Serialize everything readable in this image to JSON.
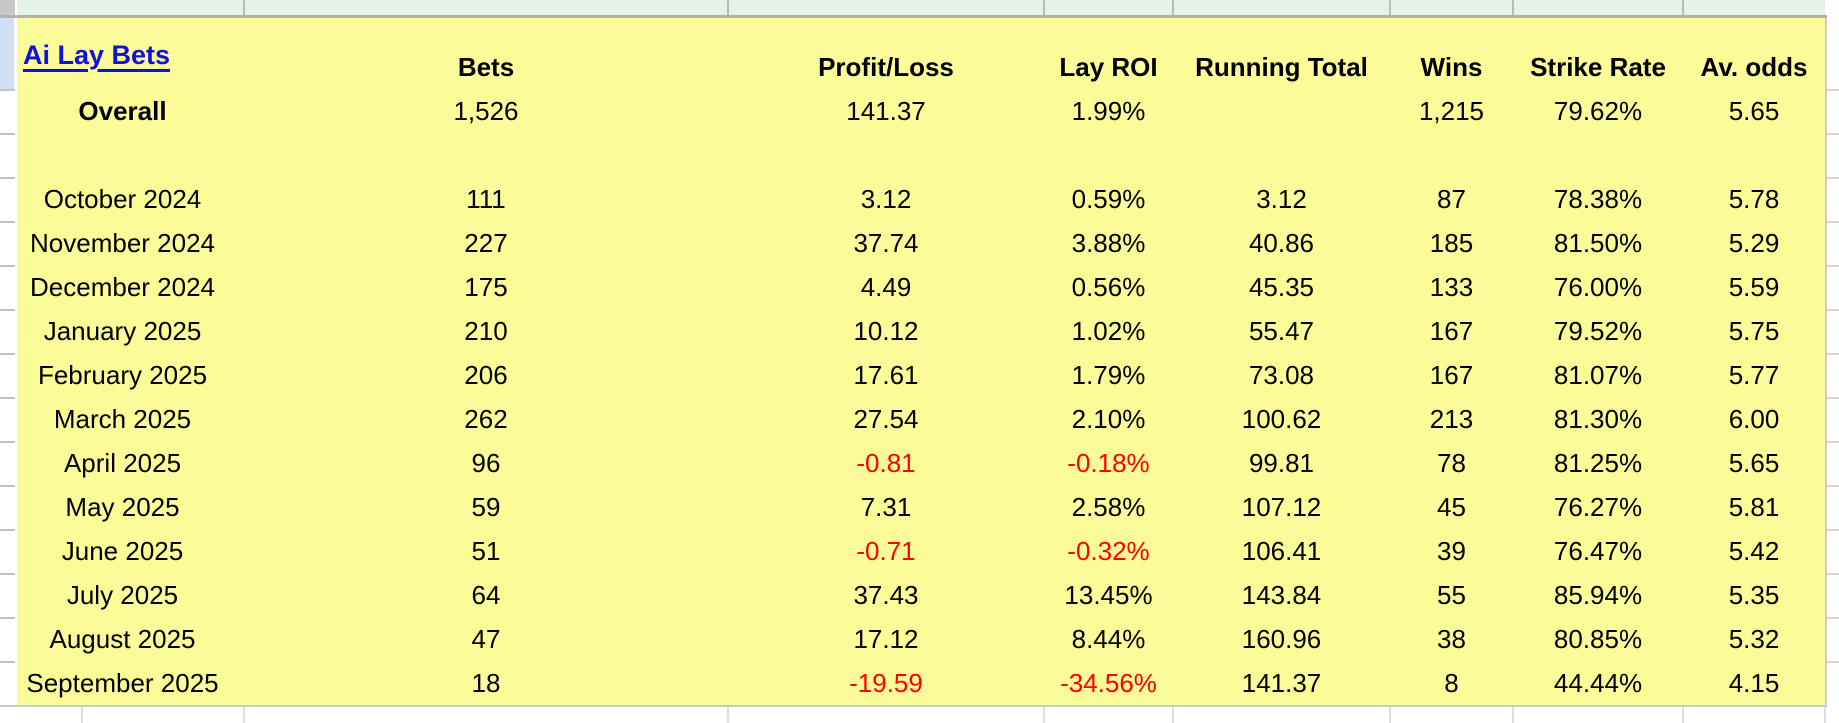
{
  "table": {
    "title_link": "Ai Lay Bets",
    "columns": [
      "Bets",
      "Profit/Loss",
      "Lay ROI",
      "Running Total",
      "Wins",
      "Strike Rate",
      "Av. odds"
    ],
    "rows": [
      {
        "label": "Overall",
        "bets": "1,526",
        "profit_loss": "141.37",
        "lay_roi": "1.99%",
        "running_total": "",
        "wins": "1,215",
        "strike_rate": "79.62%",
        "av_odds": "5.65",
        "emphasis": "bold"
      },
      {
        "label": "",
        "bets": "",
        "profit_loss": "",
        "lay_roi": "",
        "running_total": "",
        "wins": "",
        "strike_rate": "",
        "av_odds": "",
        "emphasis": ""
      },
      {
        "label": "October 2024",
        "bets": "111",
        "profit_loss": "3.12",
        "lay_roi": "0.59%",
        "running_total": "3.12",
        "wins": "87",
        "strike_rate": "78.38%",
        "av_odds": "5.78",
        "emphasis": ""
      },
      {
        "label": "November 2024",
        "bets": "227",
        "profit_loss": "37.74",
        "lay_roi": "3.88%",
        "running_total": "40.86",
        "wins": "185",
        "strike_rate": "81.50%",
        "av_odds": "5.29",
        "emphasis": ""
      },
      {
        "label": "December 2024",
        "bets": "175",
        "profit_loss": "4.49",
        "lay_roi": "0.56%",
        "running_total": "45.35",
        "wins": "133",
        "strike_rate": "76.00%",
        "av_odds": "5.59",
        "emphasis": ""
      },
      {
        "label": "January 2025",
        "bets": "210",
        "profit_loss": "10.12",
        "lay_roi": "1.02%",
        "running_total": "55.47",
        "wins": "167",
        "strike_rate": "79.52%",
        "av_odds": "5.75",
        "emphasis": ""
      },
      {
        "label": "February 2025",
        "bets": "206",
        "profit_loss": "17.61",
        "lay_roi": "1.79%",
        "running_total": "73.08",
        "wins": "167",
        "strike_rate": "81.07%",
        "av_odds": "5.77",
        "emphasis": ""
      },
      {
        "label": "March 2025",
        "bets": "262",
        "profit_loss": "27.54",
        "lay_roi": "2.10%",
        "running_total": "100.62",
        "wins": "213",
        "strike_rate": "81.30%",
        "av_odds": "6.00",
        "emphasis": ""
      },
      {
        "label": "April 2025",
        "bets": "96",
        "profit_loss": "-0.81",
        "lay_roi": "-0.18%",
        "running_total": "99.81",
        "wins": "78",
        "strike_rate": "81.25%",
        "av_odds": "5.65",
        "emphasis": ""
      },
      {
        "label": "May 2025",
        "bets": "59",
        "profit_loss": "7.31",
        "lay_roi": "2.58%",
        "running_total": "107.12",
        "wins": "45",
        "strike_rate": "76.27%",
        "av_odds": "5.81",
        "emphasis": ""
      },
      {
        "label": "June 2025",
        "bets": "51",
        "profit_loss": "-0.71",
        "lay_roi": "-0.32%",
        "running_total": "106.41",
        "wins": "39",
        "strike_rate": "76.47%",
        "av_odds": "5.42",
        "emphasis": ""
      },
      {
        "label": "July 2025",
        "bets": "64",
        "profit_loss": "37.43",
        "lay_roi": "13.45%",
        "running_total": "143.84",
        "wins": "55",
        "strike_rate": "85.94%",
        "av_odds": "5.35",
        "emphasis": ""
      },
      {
        "label": "August 2025",
        "bets": "47",
        "profit_loss": "17.12",
        "lay_roi": "8.44%",
        "running_total": "160.96",
        "wins": "38",
        "strike_rate": "80.85%",
        "av_odds": "5.32",
        "emphasis": ""
      },
      {
        "label": "September 2025",
        "bets": "18",
        "profit_loss": "-19.59",
        "lay_roi": "-34.56%",
        "running_total": "141.37",
        "wins": "8",
        "strike_rate": "44.44%",
        "av_odds": "4.15",
        "emphasis": ""
      }
    ]
  },
  "colors": {
    "table_background": "#fbfb98",
    "link_blue": "#1010e0",
    "negative_red": "#fe0000",
    "row_above_green": "#e3f3e8",
    "selected_row_header_blue": "#cfe0f5"
  }
}
